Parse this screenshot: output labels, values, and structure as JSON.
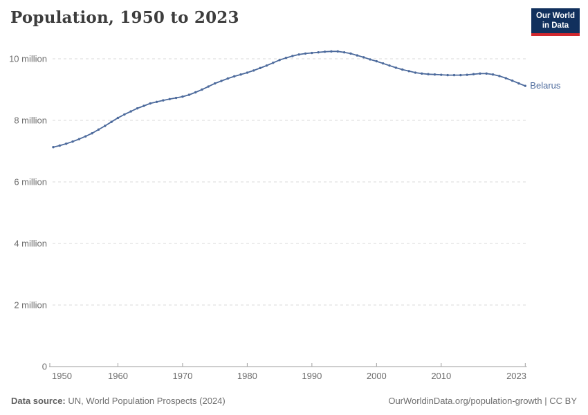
{
  "header": {
    "title": "Population, 1950 to 2023",
    "logo": {
      "line1": "Our World",
      "line2": "in Data",
      "bg_color": "#11305D",
      "bar_color": "#D2282E"
    }
  },
  "footer": {
    "source_label": "Data source:",
    "source_text": "UN, World Population Prospects (2024)",
    "credit": "OurWorldinData.org/population-growth | CC BY"
  },
  "chart_data": {
    "type": "line",
    "title": "Population, 1950 to 2023",
    "unit": "million people",
    "grid": "dashed-horizontal",
    "legend_position": "entity-label-right-of-line",
    "xlim": [
      1950,
      2023
    ],
    "ylim": [
      0,
      10.5
    ],
    "x": [
      1950,
      1951,
      1952,
      1953,
      1954,
      1955,
      1956,
      1957,
      1958,
      1959,
      1960,
      1961,
      1962,
      1963,
      1964,
      1965,
      1966,
      1967,
      1968,
      1969,
      1970,
      1971,
      1972,
      1973,
      1974,
      1975,
      1976,
      1977,
      1978,
      1979,
      1980,
      1981,
      1982,
      1983,
      1984,
      1985,
      1986,
      1987,
      1988,
      1989,
      1990,
      1991,
      1992,
      1993,
      1994,
      1995,
      1996,
      1997,
      1998,
      1999,
      2000,
      2001,
      2002,
      2003,
      2004,
      2005,
      2006,
      2007,
      2008,
      2009,
      2010,
      2011,
      2012,
      2013,
      2014,
      2015,
      2016,
      2017,
      2018,
      2019,
      2020,
      2021,
      2022,
      2023
    ],
    "series": [
      {
        "name": "Belarus",
        "color": "#4C6A9C",
        "values": [
          7.13,
          7.18,
          7.24,
          7.31,
          7.39,
          7.48,
          7.58,
          7.7,
          7.82,
          7.95,
          8.08,
          8.19,
          8.29,
          8.39,
          8.47,
          8.55,
          8.6,
          8.65,
          8.69,
          8.73,
          8.77,
          8.83,
          8.91,
          9.0,
          9.1,
          9.2,
          9.28,
          9.36,
          9.43,
          9.49,
          9.55,
          9.62,
          9.7,
          9.78,
          9.87,
          9.96,
          10.03,
          10.09,
          10.14,
          10.17,
          10.19,
          10.21,
          10.23,
          10.24,
          10.24,
          10.21,
          10.17,
          10.11,
          10.05,
          9.98,
          9.92,
          9.85,
          9.78,
          9.71,
          9.65,
          9.6,
          9.55,
          9.52,
          9.5,
          9.49,
          9.48,
          9.47,
          9.47,
          9.47,
          9.48,
          9.5,
          9.52,
          9.52,
          9.49,
          9.44,
          9.37,
          9.29,
          9.2,
          9.12
        ]
      }
    ],
    "y_ticks": [
      {
        "value": 0,
        "label": "0"
      },
      {
        "value": 2,
        "label": "2 million"
      },
      {
        "value": 4,
        "label": "4 million"
      },
      {
        "value": 6,
        "label": "6 million"
      },
      {
        "value": 8,
        "label": "8 million"
      },
      {
        "value": 10,
        "label": "10 million"
      }
    ],
    "x_ticks": [
      {
        "value": 1950,
        "label": "1950"
      },
      {
        "value": 1960,
        "label": "1960"
      },
      {
        "value": 1970,
        "label": "1970"
      },
      {
        "value": 1980,
        "label": "1980"
      },
      {
        "value": 1990,
        "label": "1990"
      },
      {
        "value": 2000,
        "label": "2000"
      },
      {
        "value": 2010,
        "label": "2010"
      },
      {
        "value": 2023,
        "label": "2023"
      }
    ]
  }
}
